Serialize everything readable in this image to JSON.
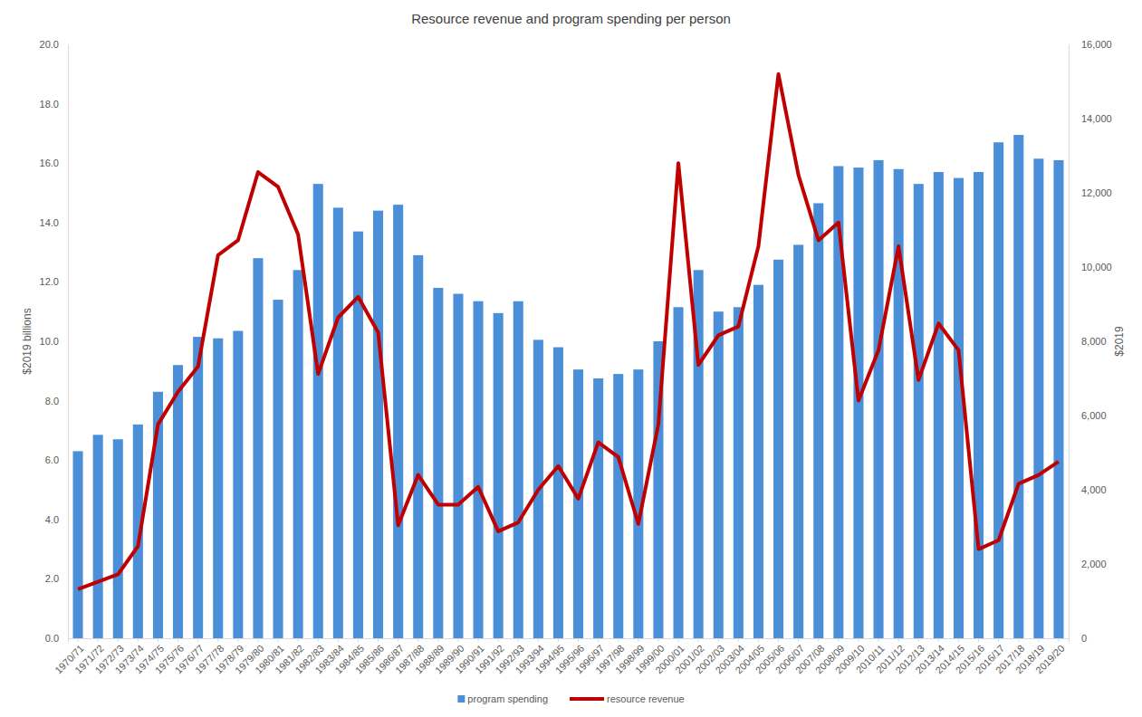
{
  "chart_data": {
    "type": "bar",
    "title": "Resource revenue and program spending per person",
    "y_label": "$2019 billions",
    "y2_label": "$2019",
    "categories": [
      "1970/71",
      "1971/72",
      "1972/73",
      "1973/74",
      "1974/75",
      "1975/76",
      "1976/77",
      "1977/78",
      "1978/79",
      "1979/80",
      "1980/81",
      "1981/82",
      "1982/83",
      "1983/84",
      "1984/85",
      "1985/86",
      "1986/87",
      "1987/88",
      "1988/89",
      "1989/90",
      "1990/91",
      "1991/92",
      "1992/93",
      "1993/94",
      "1994/95",
      "1995/96",
      "1996/97",
      "1997/98",
      "1998/99",
      "1999/00",
      "2000/01",
      "2001/02",
      "2002/03",
      "2003/04",
      "2004/05",
      "2005/06",
      "2006/07",
      "2007/08",
      "2008/09",
      "2009/10",
      "2010/11",
      "2011/12",
      "2012/13",
      "2013/14",
      "2014/15",
      "2015/16",
      "2016/17",
      "2017/18",
      "2018/19",
      "2019/20"
    ],
    "series": [
      {
        "name": "program spending",
        "type": "bar",
        "axis": "y2",
        "color": "#4a8fd8",
        "values": [
          5040,
          5480,
          5360,
          5760,
          6640,
          7360,
          8120,
          8080,
          8280,
          10240,
          9120,
          9920,
          12240,
          11600,
          10960,
          11520,
          11680,
          10320,
          9440,
          9280,
          9080,
          8760,
          9080,
          8040,
          7840,
          7240,
          7000,
          7120,
          7240,
          8000,
          8920,
          9920,
          8800,
          8920,
          9520,
          10200,
          10600,
          11720,
          12720,
          12680,
          12880,
          12640,
          12240,
          12560,
          12400,
          12560,
          13360,
          13560,
          12920,
          12880
        ]
      },
      {
        "name": "resource revenue",
        "type": "line",
        "color": "#c00000",
        "values": [
          1.65,
          1.9,
          2.15,
          3.1,
          7.2,
          8.3,
          9.15,
          12.9,
          13.4,
          15.7,
          15.2,
          13.6,
          8.9,
          10.8,
          11.5,
          10.3,
          3.8,
          5.5,
          4.5,
          4.5,
          5.1,
          3.6,
          3.9,
          5.0,
          5.8,
          4.7,
          6.6,
          6.1,
          3.85,
          7.2,
          16.0,
          9.2,
          10.2,
          10.5,
          13.2,
          19.0,
          15.6,
          13.4,
          14.0,
          8.0,
          9.7,
          13.2,
          8.7,
          10.6,
          9.7,
          3.0,
          3.3,
          5.2,
          5.5,
          5.95
        ]
      }
    ],
    "ylim": [
      0,
      20
    ],
    "yticks": [
      {
        "value": 0,
        "label": "0.0"
      },
      {
        "value": 2,
        "label": "2.0"
      },
      {
        "value": 4,
        "label": "4.0"
      },
      {
        "value": 6,
        "label": "6.0"
      },
      {
        "value": 8,
        "label": "8.0"
      },
      {
        "value": 10,
        "label": "10.0"
      },
      {
        "value": 12,
        "label": "12.0"
      },
      {
        "value": 14,
        "label": "14.0"
      },
      {
        "value": 16,
        "label": "16.0"
      },
      {
        "value": 18,
        "label": "18.0"
      },
      {
        "value": 20,
        "label": "20.0"
      }
    ],
    "y2lim": [
      0,
      16000
    ],
    "y2ticks": [
      0,
      {
        "value": 2000,
        "label": "2,000"
      },
      {
        "value": 4000,
        "label": "4,000"
      },
      {
        "value": 6000,
        "label": "6,000"
      },
      {
        "value": 8000,
        "label": "8,000"
      },
      {
        "value": 10000,
        "label": "10,000"
      },
      {
        "value": 12000,
        "label": "12,000"
      },
      {
        "value": 14000,
        "label": "14,000"
      },
      {
        "value": 16000,
        "label": "16,000"
      }
    ],
    "grid": false,
    "legend": "bottom"
  }
}
